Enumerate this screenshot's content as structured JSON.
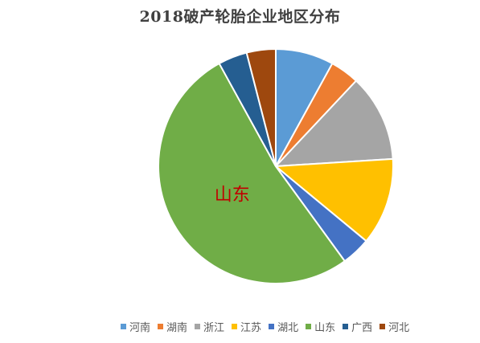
{
  "chart_data": {
    "type": "pie",
    "title": "2018破产轮胎企业地区分布",
    "categories": [
      "河南",
      "湖南",
      "浙江",
      "江苏",
      "湖北",
      "山东",
      "广西",
      "河北"
    ],
    "values": [
      8,
      4,
      12,
      12,
      4,
      52,
      4,
      4
    ],
    "colors": [
      "#5b9bd5",
      "#ed7d31",
      "#a5a5a5",
      "#ffc000",
      "#4472c4",
      "#70ad47",
      "#255e91",
      "#9e480e"
    ],
    "annotations": [
      {
        "category": "山东",
        "text": "山东",
        "color": "#c00000"
      }
    ],
    "legend_position": "bottom",
    "start_angle": "12 o'clock",
    "direction": "clockwise"
  }
}
